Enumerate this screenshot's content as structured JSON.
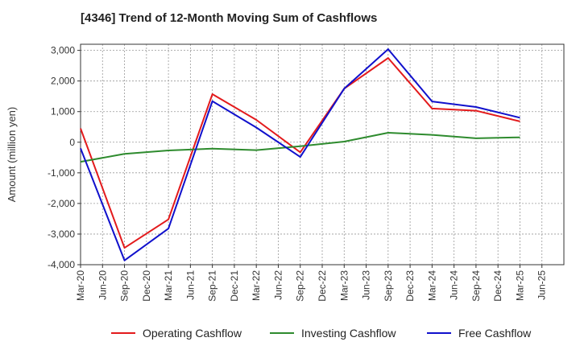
{
  "chart_data": {
    "type": "line",
    "title": "[4346]  Trend of 12-Month Moving Sum of Cashflows",
    "xlabel": "",
    "ylabel": "Amount (million yen)",
    "ylim": [
      -4000,
      3200
    ],
    "yticks": [
      -4000,
      -3000,
      -2000,
      -1000,
      0,
      1000,
      2000,
      3000
    ],
    "ytick_labels": [
      "-4,000",
      "-3,000",
      "-2,000",
      "-1,000",
      "0",
      "1,000",
      "2,000",
      "3,000"
    ],
    "categories": [
      "Mar-20",
      "Jun-20",
      "Sep-20",
      "Dec-20",
      "Mar-21",
      "Jun-21",
      "Sep-21",
      "Dec-21",
      "Mar-22",
      "Jun-22",
      "Sep-22",
      "Dec-22",
      "Mar-23",
      "Jun-23",
      "Sep-23",
      "Dec-23",
      "Mar-24",
      "Jun-24",
      "Sep-24",
      "Dec-24",
      "Mar-25",
      "Jun-25"
    ],
    "grid": true,
    "legend_position": "bottom",
    "series": [
      {
        "name": "Operating Cashflow",
        "color": "#e31a1c",
        "points": [
          [
            0,
            450
          ],
          [
            2,
            -3450
          ],
          [
            4,
            -2520
          ],
          [
            6,
            1570
          ],
          [
            8,
            730
          ],
          [
            10,
            -330
          ],
          [
            12,
            1750
          ],
          [
            14,
            2750
          ],
          [
            16,
            1100
          ],
          [
            18,
            1030
          ],
          [
            20,
            680
          ]
        ]
      },
      {
        "name": "Investing Cashflow",
        "color": "#2e8b2e",
        "points": [
          [
            0,
            -640
          ],
          [
            2,
            -380
          ],
          [
            4,
            -270
          ],
          [
            6,
            -210
          ],
          [
            8,
            -260
          ],
          [
            10,
            -130
          ],
          [
            12,
            20
          ],
          [
            14,
            310
          ],
          [
            16,
            240
          ],
          [
            18,
            130
          ],
          [
            20,
            160
          ]
        ]
      },
      {
        "name": "Free Cashflow",
        "color": "#1010cc",
        "points": [
          [
            0,
            -200
          ],
          [
            2,
            -3860
          ],
          [
            4,
            -2820
          ],
          [
            6,
            1340
          ],
          [
            8,
            480
          ],
          [
            10,
            -480
          ],
          [
            12,
            1750
          ],
          [
            14,
            3040
          ],
          [
            16,
            1330
          ],
          [
            18,
            1150
          ],
          [
            20,
            800
          ]
        ]
      }
    ]
  }
}
